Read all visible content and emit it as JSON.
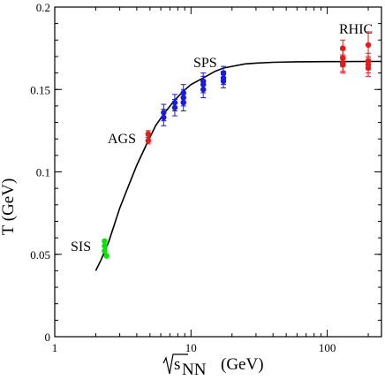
{
  "chart_data": {
    "type": "scatter",
    "title": "",
    "xlabel_root": "√s",
    "xlabel_sub": "NN",
    "xlabel_unit": "(GeV)",
    "ylabel": "T (GeV)",
    "xscale": "log",
    "xlim": [
      1,
      250
    ],
    "ylim": [
      0,
      0.2
    ],
    "grid": false,
    "x_tick_labels": [
      "1",
      "10",
      "100"
    ],
    "x_tick_values": [
      1,
      10,
      100
    ],
    "y_tick_labels": [
      "0",
      "0.05",
      "0.1",
      "0.15",
      "0.2"
    ],
    "y_tick_values": [
      0,
      0.05,
      0.1,
      0.15,
      0.2
    ],
    "curve": {
      "x": [
        2.0,
        2.2,
        2.5,
        3.0,
        3.5,
        4.0,
        4.8,
        5.5,
        6.3,
        7.5,
        8.8,
        10,
        12.3,
        15,
        17.3,
        20,
        25,
        30,
        40,
        60,
        100,
        200,
        250
      ],
      "y": [
        0.04,
        0.047,
        0.058,
        0.078,
        0.092,
        0.104,
        0.118,
        0.128,
        0.135,
        0.143,
        0.149,
        0.153,
        0.157,
        0.161,
        0.163,
        0.164,
        0.1655,
        0.166,
        0.1665,
        0.1668,
        0.1669,
        0.167,
        0.167
      ]
    },
    "series": [
      {
        "name": "SIS",
        "color": "#00e600",
        "points": [
          {
            "x": 2.32,
            "y": 0.058,
            "err": 0
          },
          {
            "x": 2.32,
            "y": 0.055,
            "err": 0
          },
          {
            "x": 2.32,
            "y": 0.052,
            "err": 0
          },
          {
            "x": 2.4,
            "y": 0.049,
            "err": 0
          }
        ]
      },
      {
        "name": "AGS",
        "color": "#e61a1a",
        "points": [
          {
            "x": 4.85,
            "y": 0.123,
            "err": 0.002
          },
          {
            "x": 4.85,
            "y": 0.119,
            "err": 0.002
          }
        ]
      },
      {
        "name": "SPS",
        "color": "#1a1ae6",
        "points": [
          {
            "x": 6.3,
            "y": 0.136,
            "err": 0.005
          },
          {
            "x": 6.3,
            "y": 0.133,
            "err": 0.005
          },
          {
            "x": 7.6,
            "y": 0.142,
            "err": 0.005
          },
          {
            "x": 7.6,
            "y": 0.139,
            "err": 0.005
          },
          {
            "x": 8.8,
            "y": 0.148,
            "err": 0.005
          },
          {
            "x": 8.8,
            "y": 0.145,
            "err": 0.005
          },
          {
            "x": 8.8,
            "y": 0.142,
            "err": 0.005
          },
          {
            "x": 12.3,
            "y": 0.155,
            "err": 0.005
          },
          {
            "x": 12.3,
            "y": 0.153,
            "err": 0.005
          },
          {
            "x": 12.3,
            "y": 0.15,
            "err": 0.005
          },
          {
            "x": 17.3,
            "y": 0.16,
            "err": 0.004
          },
          {
            "x": 17.3,
            "y": 0.157,
            "err": 0.004
          },
          {
            "x": 17.3,
            "y": 0.155,
            "err": 0.004
          }
        ]
      },
      {
        "name": "RHIC",
        "color": "#e61a1a",
        "points": [
          {
            "x": 130,
            "y": 0.175,
            "err": 0.005
          },
          {
            "x": 130,
            "y": 0.169,
            "err": 0.005
          },
          {
            "x": 130,
            "y": 0.166,
            "err": 0.005
          },
          {
            "x": 130,
            "y": 0.165,
            "err": 0.005
          },
          {
            "x": 200,
            "y": 0.177,
            "err": 0.008
          },
          {
            "x": 200,
            "y": 0.167,
            "err": 0.005
          },
          {
            "x": 200,
            "y": 0.165,
            "err": 0.005
          },
          {
            "x": 200,
            "y": 0.163,
            "err": 0.005
          }
        ]
      }
    ],
    "group_labels": [
      "SIS",
      "AGS",
      "SPS",
      "RHIC"
    ]
  }
}
